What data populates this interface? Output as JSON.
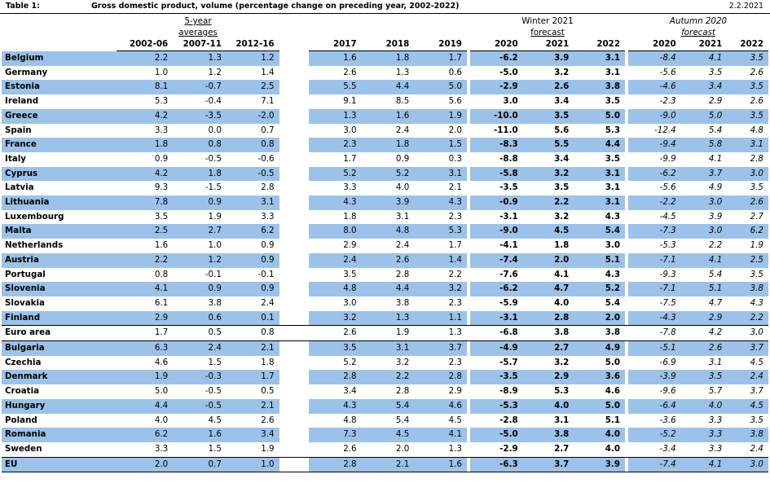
{
  "table_label": "Table 1:",
  "title": "Gross domestic product, volume (percentage change on preceding year, 2002-2022)",
  "date": "2.2.2021",
  "groups": {
    "five_year_line1": "5-year",
    "five_year_line2": "averages",
    "winter_line1": "Winter 2021",
    "winter_line2": "forecast",
    "autumn_line1": "Autumn 2020",
    "autumn_line2": "forecast"
  },
  "columns": [
    "2002-06",
    "2007-11",
    "2012-16",
    "2017",
    "2018",
    "2019",
    "2020",
    "2021",
    "2022",
    "2020",
    "2021",
    "2022"
  ],
  "rows": [
    {
      "name": "Belgium",
      "values": [
        "2.2",
        "1.3",
        "1.2",
        "1.6",
        "1.8",
        "1.7",
        "-6.2",
        "3.9",
        "3.1",
        "-8.4",
        "4.1",
        "3.5"
      ]
    },
    {
      "name": "Germany",
      "values": [
        "1.0",
        "1.2",
        "1.4",
        "2.6",
        "1.3",
        "0.6",
        "-5.0",
        "3.2",
        "3.1",
        "-5.6",
        "3.5",
        "2.6"
      ]
    },
    {
      "name": "Estonia",
      "values": [
        "8.1",
        "-0.7",
        "2.5",
        "5.5",
        "4.4",
        "5.0",
        "-2.9",
        "2.6",
        "3.8",
        "-4.6",
        "3.4",
        "3.5"
      ]
    },
    {
      "name": "Ireland",
      "values": [
        "5.3",
        "-0.4",
        "7.1",
        "9.1",
        "8.5",
        "5.6",
        "3.0",
        "3.4",
        "3.5",
        "-2.3",
        "2.9",
        "2.6"
      ]
    },
    {
      "name": "Greece",
      "values": [
        "4.2",
        "-3.5",
        "-2.0",
        "1.3",
        "1.6",
        "1.9",
        "-10.0",
        "3.5",
        "5.0",
        "-9.0",
        "5.0",
        "3.5"
      ]
    },
    {
      "name": "Spain",
      "values": [
        "3.3",
        "0.0",
        "0.7",
        "3.0",
        "2.4",
        "2.0",
        "-11.0",
        "5.6",
        "5.3",
        "-12.4",
        "5.4",
        "4.8"
      ]
    },
    {
      "name": "France",
      "values": [
        "1.8",
        "0.8",
        "0.8",
        "2.3",
        "1.8",
        "1.5",
        "-8.3",
        "5.5",
        "4.4",
        "-9.4",
        "5.8",
        "3.1"
      ]
    },
    {
      "name": "Italy",
      "values": [
        "0.9",
        "-0.5",
        "-0.6",
        "1.7",
        "0.9",
        "0.3",
        "-8.8",
        "3.4",
        "3.5",
        "-9.9",
        "4.1",
        "2.8"
      ]
    },
    {
      "name": "Cyprus",
      "values": [
        "4.2",
        "1.8",
        "-0.5",
        "5.2",
        "5.2",
        "3.1",
        "-5.8",
        "3.2",
        "3.1",
        "-6.2",
        "3.7",
        "3.0"
      ]
    },
    {
      "name": "Latvia",
      "values": [
        "9.3",
        "-1.5",
        "2.8",
        "3.3",
        "4.0",
        "2.1",
        "-3.5",
        "3.5",
        "3.1",
        "-5.6",
        "4.9",
        "3.5"
      ]
    },
    {
      "name": "Lithuania",
      "values": [
        "7.8",
        "0.9",
        "3.1",
        "4.3",
        "3.9",
        "4.3",
        "-0.9",
        "2.2",
        "3.1",
        "-2.2",
        "3.0",
        "2.6"
      ]
    },
    {
      "name": "Luxembourg",
      "values": [
        "3.5",
        "1.9",
        "3.3",
        "1.8",
        "3.1",
        "2.3",
        "-3.1",
        "3.2",
        "4.3",
        "-4.5",
        "3.9",
        "2.7"
      ]
    },
    {
      "name": "Malta",
      "values": [
        "2.5",
        "2.7",
        "6.2",
        "8.0",
        "4.8",
        "5.3",
        "-9.0",
        "4.5",
        "5.4",
        "-7.3",
        "3.0",
        "6.2"
      ]
    },
    {
      "name": "Netherlands",
      "values": [
        "1.6",
        "1.0",
        "0.9",
        "2.9",
        "2.4",
        "1.7",
        "-4.1",
        "1.8",
        "3.0",
        "-5.3",
        "2.2",
        "1.9"
      ]
    },
    {
      "name": "Austria",
      "values": [
        "2.2",
        "1.2",
        "0.9",
        "2.4",
        "2.6",
        "1.4",
        "-7.4",
        "2.0",
        "5.1",
        "-7.1",
        "4.1",
        "2.5"
      ]
    },
    {
      "name": "Portugal",
      "values": [
        "0.8",
        "-0.1",
        "-0.1",
        "3.5",
        "2.8",
        "2.2",
        "-7.6",
        "4.1",
        "4.3",
        "-9.3",
        "5.4",
        "3.5"
      ]
    },
    {
      "name": "Slovenia",
      "values": [
        "4.1",
        "0.9",
        "0.9",
        "4.8",
        "4.4",
        "3.2",
        "-6.2",
        "4.7",
        "5.2",
        "-7.1",
        "5.1",
        "3.8"
      ]
    },
    {
      "name": "Slovakia",
      "values": [
        "6.1",
        "3.8",
        "2.4",
        "3.0",
        "3.8",
        "2.3",
        "-5.9",
        "4.0",
        "5.4",
        "-7.5",
        "4.7",
        "4.3"
      ]
    },
    {
      "name": "Finland",
      "values": [
        "2.9",
        "0.6",
        "0.1",
        "3.2",
        "1.3",
        "1.1",
        "-3.1",
        "2.8",
        "2.0",
        "-4.3",
        "2.9",
        "2.2"
      ]
    },
    {
      "name": "Euro area",
      "values": [
        "1.7",
        "0.5",
        "0.8",
        "2.6",
        "1.9",
        "1.3",
        "-6.8",
        "3.8",
        "3.8",
        "-7.8",
        "4.2",
        "3.0"
      ]
    },
    {
      "name": "Bulgaria",
      "values": [
        "6.3",
        "2.4",
        "2.1",
        "3.5",
        "3.1",
        "3.7",
        "-4.9",
        "2.7",
        "4.9",
        "-5.1",
        "2.6",
        "3.7"
      ]
    },
    {
      "name": "Czechia",
      "values": [
        "4.6",
        "1.5",
        "1.8",
        "5.2",
        "3.2",
        "2.3",
        "-5.7",
        "3.2",
        "5.0",
        "-6.9",
        "3.1",
        "4.5"
      ]
    },
    {
      "name": "Denmark",
      "values": [
        "1.9",
        "-0.3",
        "1.7",
        "2.8",
        "2.2",
        "2.8",
        "-3.5",
        "2.9",
        "3.6",
        "-3.9",
        "3.5",
        "2.4"
      ]
    },
    {
      "name": "Croatia",
      "values": [
        "5.0",
        "-0.5",
        "0.5",
        "3.4",
        "2.8",
        "2.9",
        "-8.9",
        "5.3",
        "4.6",
        "-9.6",
        "5.7",
        "3.7"
      ]
    },
    {
      "name": "Hungary",
      "values": [
        "4.4",
        "-0.5",
        "2.1",
        "4.3",
        "5.4",
        "4.6",
        "-5.3",
        "4.0",
        "5.0",
        "-6.4",
        "4.0",
        "4.5"
      ]
    },
    {
      "name": "Poland",
      "values": [
        "4.0",
        "4.5",
        "2.6",
        "4.8",
        "5.4",
        "4.5",
        "-2.8",
        "3.1",
        "5.1",
        "-3.6",
        "3.3",
        "3.5"
      ]
    },
    {
      "name": "Romania",
      "values": [
        "6.2",
        "1.6",
        "3.4",
        "7.3",
        "4.5",
        "4.1",
        "-5.0",
        "3.8",
        "4.0",
        "-5.2",
        "3.3",
        "3.8"
      ]
    },
    {
      "name": "Sweden",
      "values": [
        "3.3",
        "1.5",
        "1.9",
        "2.6",
        "2.0",
        "1.3",
        "-2.9",
        "2.7",
        "4.0",
        "-3.4",
        "3.3",
        "2.4"
      ]
    },
    {
      "name": "EU",
      "values": [
        "2.0",
        "0.7",
        "1.0",
        "2.8",
        "2.1",
        "1.6",
        "-6.3",
        "3.7",
        "3.9",
        "-7.4",
        "4.1",
        "3.0"
      ]
    }
  ],
  "style": {
    "row_highlight": "#9cc2ea",
    "highlighted_rows": [
      0,
      2,
      4,
      6,
      8,
      10,
      12,
      14,
      16,
      18,
      20,
      22,
      24,
      26,
      28
    ],
    "section_separator_rows": [
      19,
      20,
      28
    ],
    "bold_groups": [
      "winter"
    ],
    "italic_groups": [
      "autumn"
    ]
  }
}
